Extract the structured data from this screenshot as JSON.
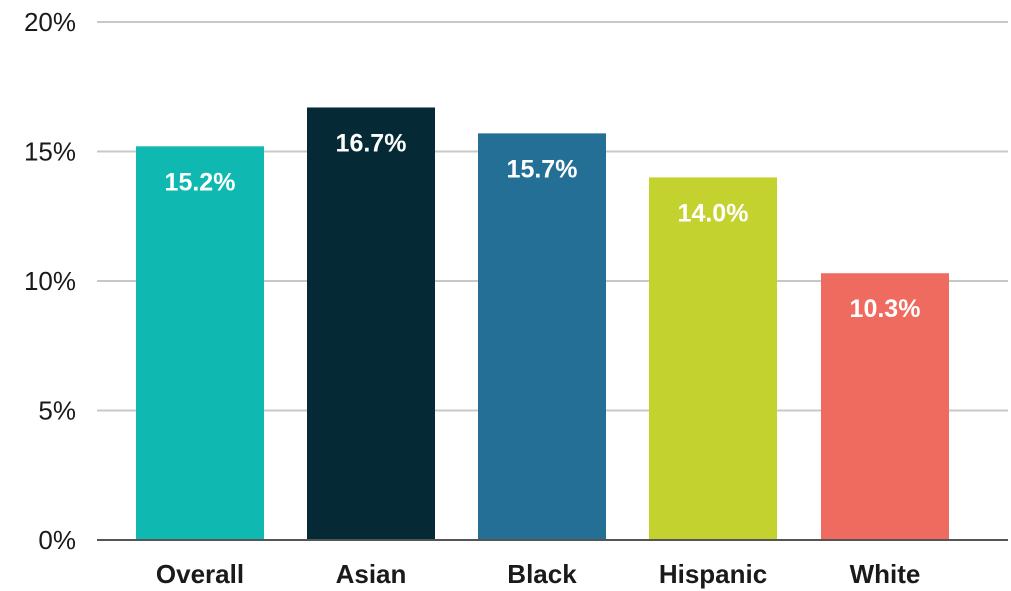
{
  "chart_data": {
    "type": "bar",
    "categories": [
      "Overall",
      "Asian",
      "Black",
      "Hispanic",
      "White"
    ],
    "values": [
      15.2,
      16.7,
      15.7,
      14.0,
      10.3
    ],
    "data_labels": [
      "15.2%",
      "16.7%",
      "15.7%",
      "14.0%",
      "10.3%"
    ],
    "colors": [
      "#0fb8b0",
      "#062a35",
      "#236f96",
      "#c4d22f",
      "#ef6a5f"
    ],
    "ylim": [
      0,
      20
    ],
    "yticks": [
      0,
      5,
      10,
      15,
      20
    ],
    "ytick_labels": [
      "0%",
      "5%",
      "10%",
      "15%",
      "20%"
    ],
    "grid": true,
    "legend": "none",
    "title": "",
    "xlabel": "",
    "ylabel": ""
  }
}
